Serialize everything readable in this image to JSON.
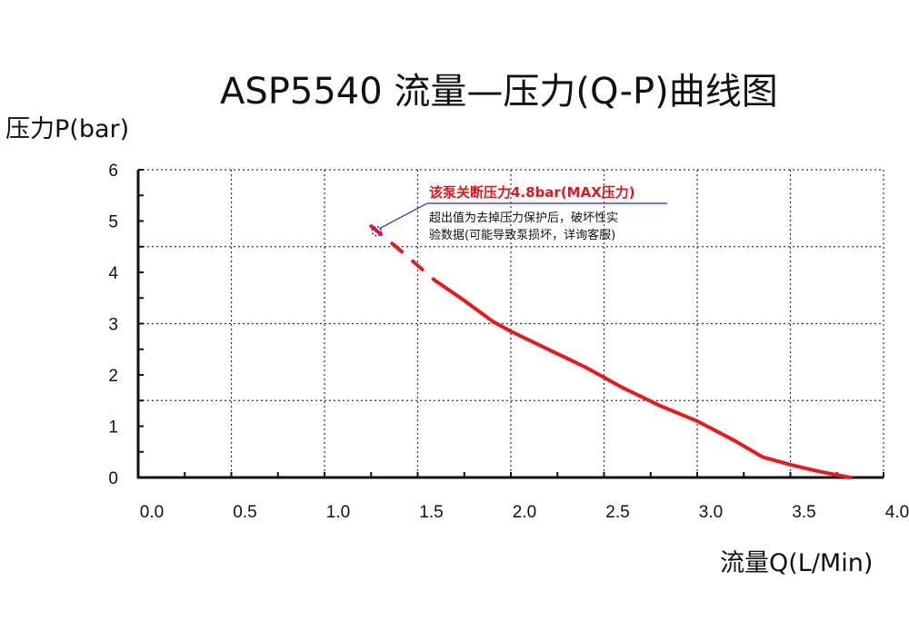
{
  "title": "ASP5540 流量—压力(Q-P)曲线图",
  "chart_data": {
    "type": "line",
    "title": "ASP5540 流量—压力(Q-P)曲线图",
    "xlabel": "流量Q(L/Min)",
    "ylabel": "压力P(bar)",
    "xlim": [
      0,
      4.0
    ],
    "ylim": [
      0,
      6
    ],
    "x_ticks": [
      "0.0",
      "0.5",
      "1.0",
      "1.5",
      "2.0",
      "2.5",
      "3.0",
      "3.5",
      "4.0"
    ],
    "y_ticks": [
      "0",
      "1",
      "2",
      "3",
      "4",
      "5",
      "6"
    ],
    "grid": "dotted",
    "series": [
      {
        "name": "",
        "color": "#e8191c",
        "x": [
          1.59,
          1.75,
          1.9,
          2.0,
          2.2,
          2.4,
          2.6,
          2.8,
          3.0,
          3.2,
          3.35,
          3.5,
          3.65,
          3.82
        ],
        "y": [
          3.85,
          3.45,
          3.05,
          2.85,
          2.5,
          2.15,
          1.75,
          1.4,
          1.1,
          0.72,
          0.4,
          0.25,
          0.12,
          0.0
        ]
      },
      {
        "name": "",
        "color": "#e8191c",
        "style": "dashed",
        "x": [
          1.25,
          1.4,
          1.59
        ],
        "y": [
          4.9,
          4.45,
          3.85
        ]
      }
    ],
    "annotation": {
      "point": {
        "x": 1.28,
        "y": 4.8
      },
      "title": "该泵关断压力4.8bar(MAX压力)",
      "lines": [
        "超出值为去掉压力保护后，破坏性实",
        "验数据(可能导致泵损坏，详询客服)"
      ],
      "title_color": "#e0161b",
      "marker_color": "#1a2fd6"
    }
  }
}
